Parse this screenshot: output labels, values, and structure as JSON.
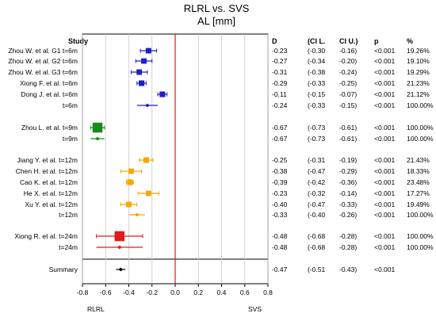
{
  "chart_data": {
    "type": "forest",
    "title": "RLRL vs. SVS",
    "subtitle": "AL [mm]",
    "columns": {
      "study": "Study",
      "d": "D",
      "cil": "(CI L.",
      "ciu": "CI U.)",
      "p": "p",
      "pct": "%"
    },
    "x_ticks": [
      -0.8,
      -0.6,
      -0.4,
      -0.2,
      0.0,
      0.2,
      0.4,
      0.6,
      0.8
    ],
    "x_tick_labels": [
      "-0.8",
      "-0.6",
      "-0.4",
      "-0.2",
      "0.0",
      "0.2",
      "0.4",
      "0.6",
      "0.8"
    ],
    "xlim": [
      -0.8,
      0.8
    ],
    "reference_line": 0,
    "left_label": "RLRL",
    "right_label": "SVS",
    "colors": {
      "blue": "#1f1fc8",
      "green": "#1a8a1a",
      "orange": "#f5a800",
      "red": "#e31a1c",
      "black": "#000000",
      "ref": "#e31a1c"
    },
    "rows": [
      {
        "label": "Zhou W. et al.  G1 t=6m",
        "d": -0.23,
        "lo": -0.3,
        "hi": -0.16,
        "d_text": "-0.23",
        "lo_text": "(-0.30",
        "hi_text": "-0.16)",
        "p": "<0.001",
        "weight": "19.26%",
        "w": 19.26,
        "color": "blue",
        "kind": "study"
      },
      {
        "label": "Zhou W. et al.  G2 t=6m",
        "d": -0.27,
        "lo": -0.34,
        "hi": -0.2,
        "d_text": "-0.27",
        "lo_text": "(-0.34",
        "hi_text": "-0.20)",
        "p": "<0.001",
        "weight": "19.10%",
        "w": 19.1,
        "color": "blue",
        "kind": "study"
      },
      {
        "label": "Zhou W. et al.  G3 t=6m",
        "d": -0.31,
        "lo": -0.38,
        "hi": -0.24,
        "d_text": "-0.31",
        "lo_text": "(-0.38",
        "hi_text": "-0.24)",
        "p": "<0.001",
        "weight": "19.29%",
        "w": 19.29,
        "color": "blue",
        "kind": "study"
      },
      {
        "label": "Xiong F. et al.  t=6m",
        "d": -0.29,
        "lo": -0.33,
        "hi": -0.25,
        "d_text": "-0.29",
        "lo_text": "(-0.33",
        "hi_text": "-0.25)",
        "p": "<0.001",
        "weight": "21.23%",
        "w": 21.23,
        "color": "blue",
        "kind": "study"
      },
      {
        "label": "Dong J. et al.  t=6m",
        "d": -0.11,
        "lo": -0.15,
        "hi": -0.07,
        "d_text": "-0.11",
        "lo_text": "(-0.15",
        "hi_text": "-0.07)",
        "p": "<0.001",
        "weight": "21.12%",
        "w": 21.12,
        "color": "blue",
        "kind": "study"
      },
      {
        "label": "t=6m",
        "d": -0.24,
        "lo": -0.33,
        "hi": -0.15,
        "d_text": "-0.24",
        "lo_text": "(-0.33",
        "hi_text": "-0.15)",
        "p": "<0.001",
        "weight": "100.00%",
        "w": 100,
        "color": "blue",
        "kind": "pooled"
      },
      {
        "label": "Zhou L. et al.  t=9m",
        "d": -0.67,
        "lo": -0.73,
        "hi": -0.61,
        "d_text": "-0.67",
        "lo_text": "(-0.73",
        "hi_text": "-0.61)",
        "p": "<0.001",
        "weight": "100.00%",
        "w": 100,
        "color": "green",
        "kind": "study"
      },
      {
        "label": "t=9m",
        "d": -0.67,
        "lo": -0.73,
        "hi": -0.61,
        "d_text": "-0.67",
        "lo_text": "(-0.73",
        "hi_text": "-0.61)",
        "p": "<0.001",
        "weight": "100.00%",
        "w": 100,
        "color": "green",
        "kind": "pooled"
      },
      {
        "label": "Jiang Y. et al.  t=12m",
        "d": -0.25,
        "lo": -0.31,
        "hi": -0.19,
        "d_text": "-0.25",
        "lo_text": "(-0.31",
        "hi_text": "-0.19)",
        "p": "<0.001",
        "weight": "21.43%",
        "w": 21.43,
        "color": "orange",
        "kind": "study"
      },
      {
        "label": "Chen H. et al.  t=12m",
        "d": -0.38,
        "lo": -0.47,
        "hi": -0.29,
        "d_text": "-0.38",
        "lo_text": "(-0.47",
        "hi_text": "-0.29)",
        "p": "<0.001",
        "weight": "18.33%",
        "w": 18.33,
        "color": "orange",
        "kind": "study"
      },
      {
        "label": "Cao K. et al.  t=12m",
        "d": -0.39,
        "lo": -0.42,
        "hi": -0.36,
        "d_text": "-0.39",
        "lo_text": "(-0.42",
        "hi_text": "-0.36)",
        "p": "<0.001",
        "weight": "23.48%",
        "w": 23.48,
        "color": "orange",
        "kind": "study"
      },
      {
        "label": "He X. et al.  t=12m",
        "d": -0.23,
        "lo": -0.32,
        "hi": -0.14,
        "d_text": "-0.23",
        "lo_text": "(-0.32",
        "hi_text": "-0.14)",
        "p": "<0.001",
        "weight": "17.27%",
        "w": 17.27,
        "color": "orange",
        "kind": "study"
      },
      {
        "label": "Xu Y. et al.  t=12m",
        "d": -0.4,
        "lo": -0.47,
        "hi": -0.33,
        "d_text": "-0.40",
        "lo_text": "(-0.47",
        "hi_text": "-0.33)",
        "p": "<0.001",
        "weight": "19.49%",
        "w": 19.49,
        "color": "orange",
        "kind": "study"
      },
      {
        "label": "t=12m",
        "d": -0.33,
        "lo": -0.4,
        "hi": -0.26,
        "d_text": "-0.33",
        "lo_text": "(-0.40",
        "hi_text": "-0.26)",
        "p": "<0.001",
        "weight": "100.00%",
        "w": 100,
        "color": "orange",
        "kind": "pooled"
      },
      {
        "label": "Xiong R. et al.  t=24m",
        "d": -0.48,
        "lo": -0.68,
        "hi": -0.28,
        "d_text": "-0.48",
        "lo_text": "(-0.68",
        "hi_text": "-0.28)",
        "p": "<0.001",
        "weight": "100.00%",
        "w": 100,
        "color": "red",
        "kind": "study"
      },
      {
        "label": "t=24m",
        "d": -0.48,
        "lo": -0.68,
        "hi": -0.28,
        "d_text": "-0.48",
        "lo_text": "(-0.68",
        "hi_text": "-0.28)",
        "p": "<0.001",
        "weight": "100.00%",
        "w": 100,
        "color": "red",
        "kind": "pooled"
      },
      {
        "label": "Summary",
        "d": -0.47,
        "lo": -0.51,
        "hi": -0.43,
        "d_text": "-0.47",
        "lo_text": "(-0.51",
        "hi_text": "-0.43)",
        "p": "<0.001",
        "weight": "",
        "w": 0,
        "color": "black",
        "kind": "summary"
      }
    ]
  }
}
